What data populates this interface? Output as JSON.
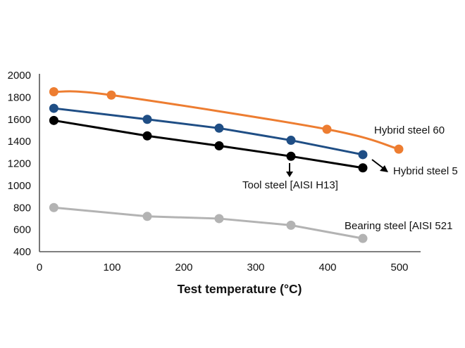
{
  "chart_data": {
    "type": "line",
    "title": "",
    "xlabel": "Test temperature (°C)",
    "ylabel": "",
    "xlim": [
      0,
      530
    ],
    "ylim": [
      400,
      2000
    ],
    "xticks": [
      0,
      100,
      200,
      300,
      400,
      500
    ],
    "yticks": [
      400,
      600,
      800,
      1000,
      1200,
      1400,
      1600,
      1800,
      2000
    ],
    "grid": false,
    "legend": "inline annotations",
    "series": [
      {
        "name": "Hybrid steel 60",
        "color": "#ED7D31",
        "smooth": true,
        "x": [
          20,
          100,
          400,
          500
        ],
        "y": [
          1850,
          1820,
          1510,
          1330
        ]
      },
      {
        "name": "Hybrid steel 5",
        "color": "#1F4E85",
        "smooth": false,
        "x": [
          20,
          150,
          250,
          350,
          450
        ],
        "y": [
          1700,
          1600,
          1520,
          1410,
          1280
        ]
      },
      {
        "name": "Tool steel [AISI H13]",
        "color": "#000000",
        "smooth": false,
        "x": [
          20,
          150,
          250,
          350,
          450
        ],
        "y": [
          1590,
          1450,
          1360,
          1265,
          1160
        ]
      },
      {
        "name": "Bearing steel [AISI 521",
        "color": "#B3B3B3",
        "smooth": false,
        "x": [
          20,
          150,
          250,
          350,
          450
        ],
        "y": [
          800,
          720,
          700,
          640,
          520
        ]
      }
    ],
    "annotations": [
      {
        "text": "Hybrid steel 60",
        "series": 0,
        "arrow": "none"
      },
      {
        "text": "Hybrid steel 5",
        "series": 1,
        "arrow": "down-right"
      },
      {
        "text": "Tool steel [AISI H13]",
        "series": 2,
        "arrow": "down"
      },
      {
        "text": "Bearing steel [AISI 521",
        "series": 3,
        "arrow": "none"
      }
    ]
  }
}
